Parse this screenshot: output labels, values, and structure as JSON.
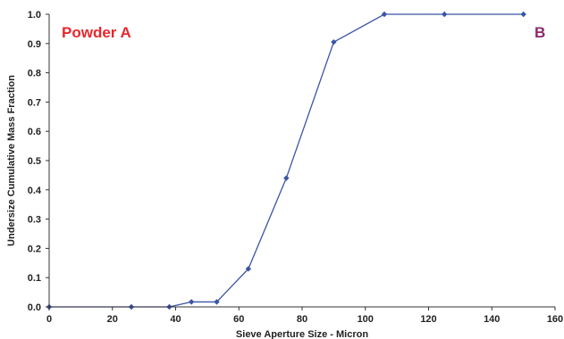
{
  "chart_data": {
    "type": "line",
    "title": "",
    "xlabel": "Sieve Aperture Size - Micron",
    "ylabel": "Undersize Cumulative Mass Fraction",
    "xlim": [
      0,
      160
    ],
    "ylim": [
      0,
      1.0
    ],
    "x_ticks": [
      "0",
      "20",
      "40",
      "60",
      "80",
      "100",
      "120",
      "140",
      "160"
    ],
    "y_ticks": [
      "0.0",
      "0.1",
      "0.2",
      "0.3",
      "0.4",
      "0.5",
      "0.6",
      "0.7",
      "0.8",
      "0.9",
      "1.0"
    ],
    "grid": false,
    "series": [
      {
        "color": "#3a55a4",
        "x": [
          0,
          26,
          38,
          45,
          53,
          63,
          75,
          90,
          106,
          125,
          150
        ],
        "y": [
          0,
          0,
          0,
          0.017,
          0.017,
          0.13,
          0.44,
          0.905,
          1.0,
          1.0,
          1.0
        ]
      }
    ],
    "annotations": [
      {
        "text": "Powder A",
        "position": "top-left",
        "color": "#e8262b"
      },
      {
        "text": "B",
        "position": "top-right",
        "color": "#8b2a6b"
      }
    ]
  }
}
